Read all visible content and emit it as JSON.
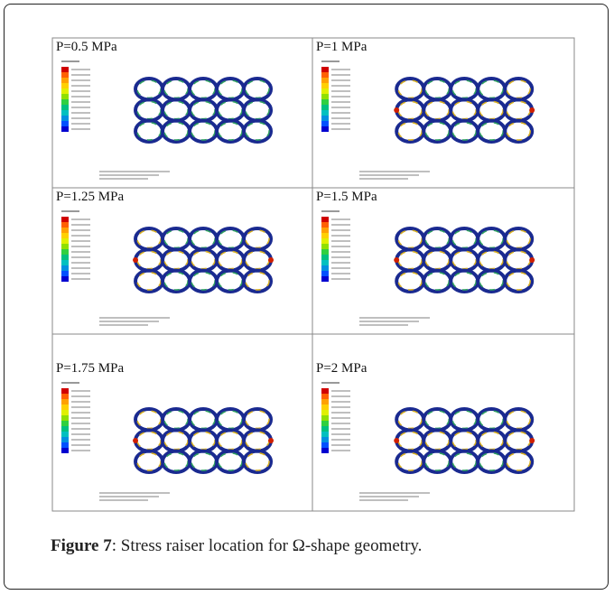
{
  "figure": {
    "panels": [
      {
        "label": "P=0.5 MPa"
      },
      {
        "label": "P=1 MPa"
      },
      {
        "label": "P=1.25 MPa"
      },
      {
        "label": "P=1.5 MPa"
      },
      {
        "label": "P=1.75 MPa"
      },
      {
        "label": "P=2 MPa"
      }
    ]
  },
  "caption": {
    "label": "Figure 7",
    "text": ": Stress raiser location for Ω-shape geometry."
  }
}
